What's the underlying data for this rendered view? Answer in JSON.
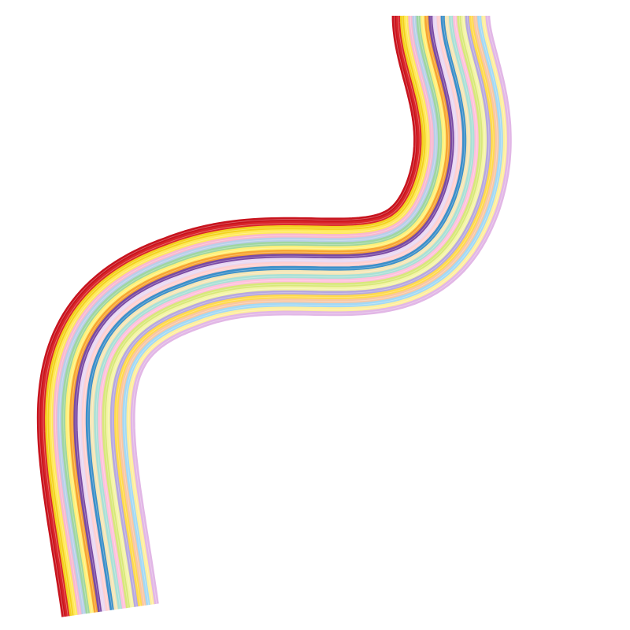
{
  "image": {
    "subject": "paper-quilling-strips-bundle",
    "background_color": "#ffffff",
    "strip_colors": [
      "#c8141e",
      "#d9252a",
      "#f3d21d",
      "#ffe95a",
      "#f8b8cf",
      "#b9cfe9",
      "#9fd6a0",
      "#fff07a",
      "#f7a533",
      "#7a4aa3",
      "#e9d8f2",
      "#ffd0d0",
      "#3b8fc9",
      "#f5e6b7",
      "#a9e0d6",
      "#ffc1dc",
      "#d8e87a",
      "#f4f4a8",
      "#b7a8e0",
      "#ffda4d",
      "#f9c7a3",
      "#a3d9f5",
      "#ffef9e",
      "#e2b7e6"
    ]
  }
}
